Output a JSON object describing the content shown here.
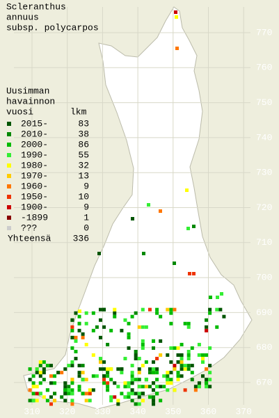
{
  "title": [
    "Scleranthus",
    "annuus",
    "subsp. polycarpos"
  ],
  "legend": {
    "heading": [
      "Uusimman",
      "havainnon"
    ],
    "col_year": "vuosi",
    "col_count": "lkm",
    "rows": [
      {
        "label": "2015-",
        "count": "83",
        "color": "#005500"
      },
      {
        "label": "2010-",
        "count": "38",
        "color": "#008800"
      },
      {
        "label": "2000-",
        "count": "86",
        "color": "#00bb00"
      },
      {
        "label": "1990-",
        "count": "55",
        "color": "#33ee33"
      },
      {
        "label": "1980-",
        "count": "32",
        "color": "#ffff00"
      },
      {
        "label": "1970-",
        "count": "13",
        "color": "#ffcc00"
      },
      {
        "label": "1960-",
        "count": "9",
        "color": "#ff7700"
      },
      {
        "label": "1950-",
        "count": "10",
        "color": "#ee3300"
      },
      {
        "label": "1900-",
        "count": "9",
        "color": "#cc0000"
      },
      {
        "label": "-1899",
        "count": "1",
        "color": "#880000"
      },
      {
        "label": "???",
        "count": "0",
        "color": "#cccccc"
      }
    ],
    "total_label": "Yhteensä",
    "total": "336"
  },
  "y_labels": [
    "770",
    "760",
    "750",
    "740",
    "730",
    "720",
    "710",
    "700",
    "690",
    "680",
    "670"
  ],
  "x_labels": [
    "310",
    "320",
    "330",
    "340",
    "350",
    "360",
    "370"
  ]
}
